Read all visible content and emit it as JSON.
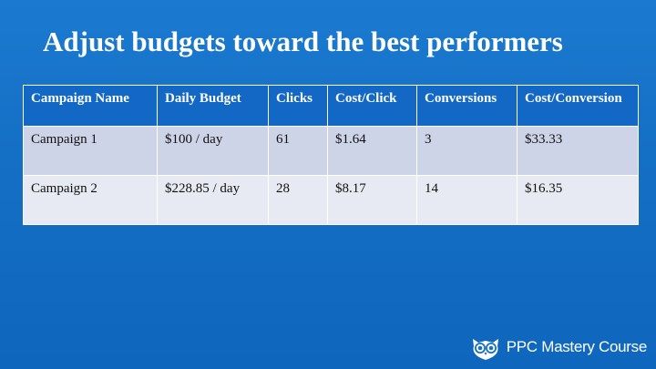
{
  "slide": {
    "title": "Adjust budgets toward the best performers"
  },
  "table": {
    "headers": [
      "Campaign Name",
      "Daily Budget",
      "Clicks",
      "Cost/Click",
      "Conversions",
      "Cost/Conversion"
    ],
    "rows": [
      [
        "Campaign 1",
        "$100 / day",
        "61",
        "$1.64",
        "3",
        "$33.33"
      ],
      [
        "Campaign 2",
        "$228.85 / day",
        "28",
        "$8.17",
        "14",
        "$16.35"
      ]
    ]
  },
  "logo": {
    "text": "PPC Mastery Course",
    "icon": "owl-icon"
  },
  "colors": {
    "background": "#1571c6",
    "header_row": "#1268c4",
    "row_1": "#cdd4e8",
    "row_2": "#e7e9f3",
    "text_light": "#ffffff"
  }
}
